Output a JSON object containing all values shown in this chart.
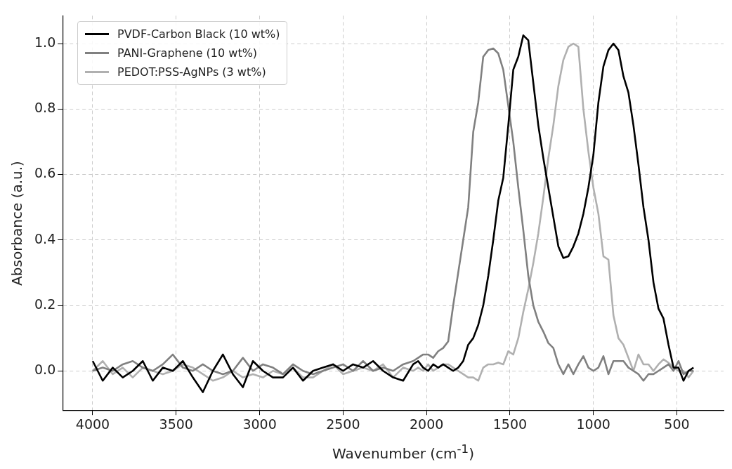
{
  "chart_data": {
    "type": "line",
    "xlabel": "Wavenumber (cm$^{-1}$)",
    "ylabel": "Absorbance (a.u.)",
    "x": [
      4000,
      3940,
      3880,
      3820,
      3760,
      3700,
      3640,
      3580,
      3520,
      3460,
      3400,
      3340,
      3280,
      3220,
      3160,
      3100,
      3040,
      2980,
      2920,
      2860,
      2800,
      2740,
      2680,
      2620,
      2560,
      2500,
      2440,
      2380,
      2320,
      2260,
      2200,
      2140,
      2080,
      2050,
      2020,
      1990,
      1960,
      1930,
      1900,
      1870,
      1840,
      1810,
      1780,
      1750,
      1720,
      1690,
      1660,
      1630,
      1600,
      1570,
      1540,
      1510,
      1480,
      1450,
      1420,
      1390,
      1360,
      1330,
      1300,
      1270,
      1240,
      1210,
      1180,
      1150,
      1120,
      1090,
      1060,
      1030,
      1000,
      970,
      940,
      910,
      880,
      850,
      820,
      790,
      760,
      730,
      700,
      670,
      640,
      610,
      580,
      550,
      520,
      490,
      460,
      430,
      400
    ],
    "series": [
      {
        "name": "PVDF-Carbon Black (10 wt%)",
        "color": "#000000",
        "values": [
          0.03,
          -0.03,
          0.01,
          -0.02,
          0.0,
          0.03,
          -0.03,
          0.01,
          0.0,
          0.03,
          -0.02,
          -0.065,
          0.0,
          0.05,
          -0.01,
          -0.05,
          0.03,
          0.0,
          -0.02,
          -0.02,
          0.01,
          -0.03,
          0.0,
          0.01,
          0.02,
          0.0,
          0.02,
          0.01,
          0.03,
          0.0,
          -0.02,
          -0.03,
          0.02,
          0.03,
          0.01,
          0.0,
          0.02,
          0.01,
          0.02,
          0.01,
          0.0,
          0.01,
          0.03,
          0.08,
          0.1,
          0.14,
          0.2,
          0.29,
          0.4,
          0.52,
          0.59,
          0.75,
          0.92,
          0.96,
          1.025,
          1.01,
          0.88,
          0.75,
          0.65,
          0.56,
          0.47,
          0.38,
          0.345,
          0.35,
          0.38,
          0.42,
          0.48,
          0.56,
          0.66,
          0.82,
          0.93,
          0.98,
          1.0,
          0.98,
          0.9,
          0.85,
          0.75,
          0.63,
          0.5,
          0.4,
          0.27,
          0.19,
          0.16,
          0.08,
          0.01,
          0.01,
          -0.03,
          0.0,
          0.01
        ]
      },
      {
        "name": "PANI-Graphene (10 wt%)",
        "color": "#808080",
        "values": [
          0.0,
          0.01,
          0.0,
          0.02,
          0.03,
          0.01,
          0.0,
          0.02,
          0.05,
          0.01,
          0.0,
          0.02,
          0.0,
          -0.01,
          0.0,
          0.04,
          0.0,
          0.02,
          0.01,
          -0.01,
          0.02,
          0.0,
          -0.01,
          0.0,
          0.01,
          0.02,
          0.0,
          0.03,
          0.0,
          0.01,
          0.0,
          0.02,
          0.03,
          0.04,
          0.05,
          0.05,
          0.04,
          0.06,
          0.07,
          0.09,
          0.2,
          0.3,
          0.4,
          0.5,
          0.73,
          0.82,
          0.96,
          0.98,
          0.985,
          0.97,
          0.92,
          0.81,
          0.7,
          0.56,
          0.43,
          0.29,
          0.2,
          0.15,
          0.12,
          0.085,
          0.07,
          0.02,
          -0.01,
          0.02,
          -0.01,
          0.02,
          0.045,
          0.01,
          0.0,
          0.01,
          0.045,
          -0.01,
          0.03,
          0.03,
          0.03,
          0.01,
          0.0,
          -0.01,
          -0.03,
          -0.01,
          -0.01,
          0.0,
          0.01,
          0.02,
          0.0,
          0.03,
          -0.01,
          0.0,
          0.0
        ]
      },
      {
        "name": "PEDOT:PSS-AgNPs (3 wt%)",
        "color": "#b0b0b0",
        "values": [
          0.0,
          0.03,
          -0.01,
          0.01,
          -0.02,
          0.01,
          0.0,
          -0.01,
          0.0,
          0.02,
          0.01,
          -0.01,
          -0.03,
          -0.02,
          0.0,
          -0.02,
          -0.01,
          -0.02,
          0.0,
          -0.01,
          0.01,
          -0.02,
          -0.02,
          0.0,
          0.02,
          -0.01,
          0.0,
          0.01,
          0.0,
          0.02,
          -0.02,
          0.01,
          0.0,
          0.01,
          0.0,
          0.02,
          0.0,
          0.01,
          0.02,
          0.02,
          0.01,
          0.0,
          -0.01,
          -0.02,
          -0.02,
          -0.03,
          0.01,
          0.02,
          0.02,
          0.025,
          0.02,
          0.06,
          0.05,
          0.1,
          0.18,
          0.25,
          0.33,
          0.42,
          0.53,
          0.65,
          0.75,
          0.87,
          0.95,
          0.99,
          1.0,
          0.99,
          0.8,
          0.67,
          0.56,
          0.48,
          0.35,
          0.34,
          0.17,
          0.1,
          0.08,
          0.04,
          0.0,
          0.05,
          0.02,
          0.02,
          0.0,
          0.02,
          0.035,
          0.025,
          0.01,
          0.0,
          0.0,
          -0.02,
          0.0
        ]
      }
    ],
    "xlim": [
      4180,
      220
    ],
    "xticks": [
      4000,
      3500,
      3000,
      2500,
      2000,
      1500,
      1000,
      500
    ],
    "ylim": [
      -0.12,
      1.085
    ],
    "yticks": [
      {
        "value": 0,
        "label": "0.0"
      },
      {
        "value": 0.2,
        "label": "0.2"
      },
      {
        "value": 0.4,
        "label": "0.4"
      },
      {
        "value": 0.6,
        "label": "0.6"
      },
      {
        "value": 0.8,
        "label": "0.8"
      },
      {
        "value": 1.0,
        "label": "1.0"
      }
    ],
    "grid": true,
    "legend": "top left",
    "line_style": "solid",
    "marker": "none"
  }
}
